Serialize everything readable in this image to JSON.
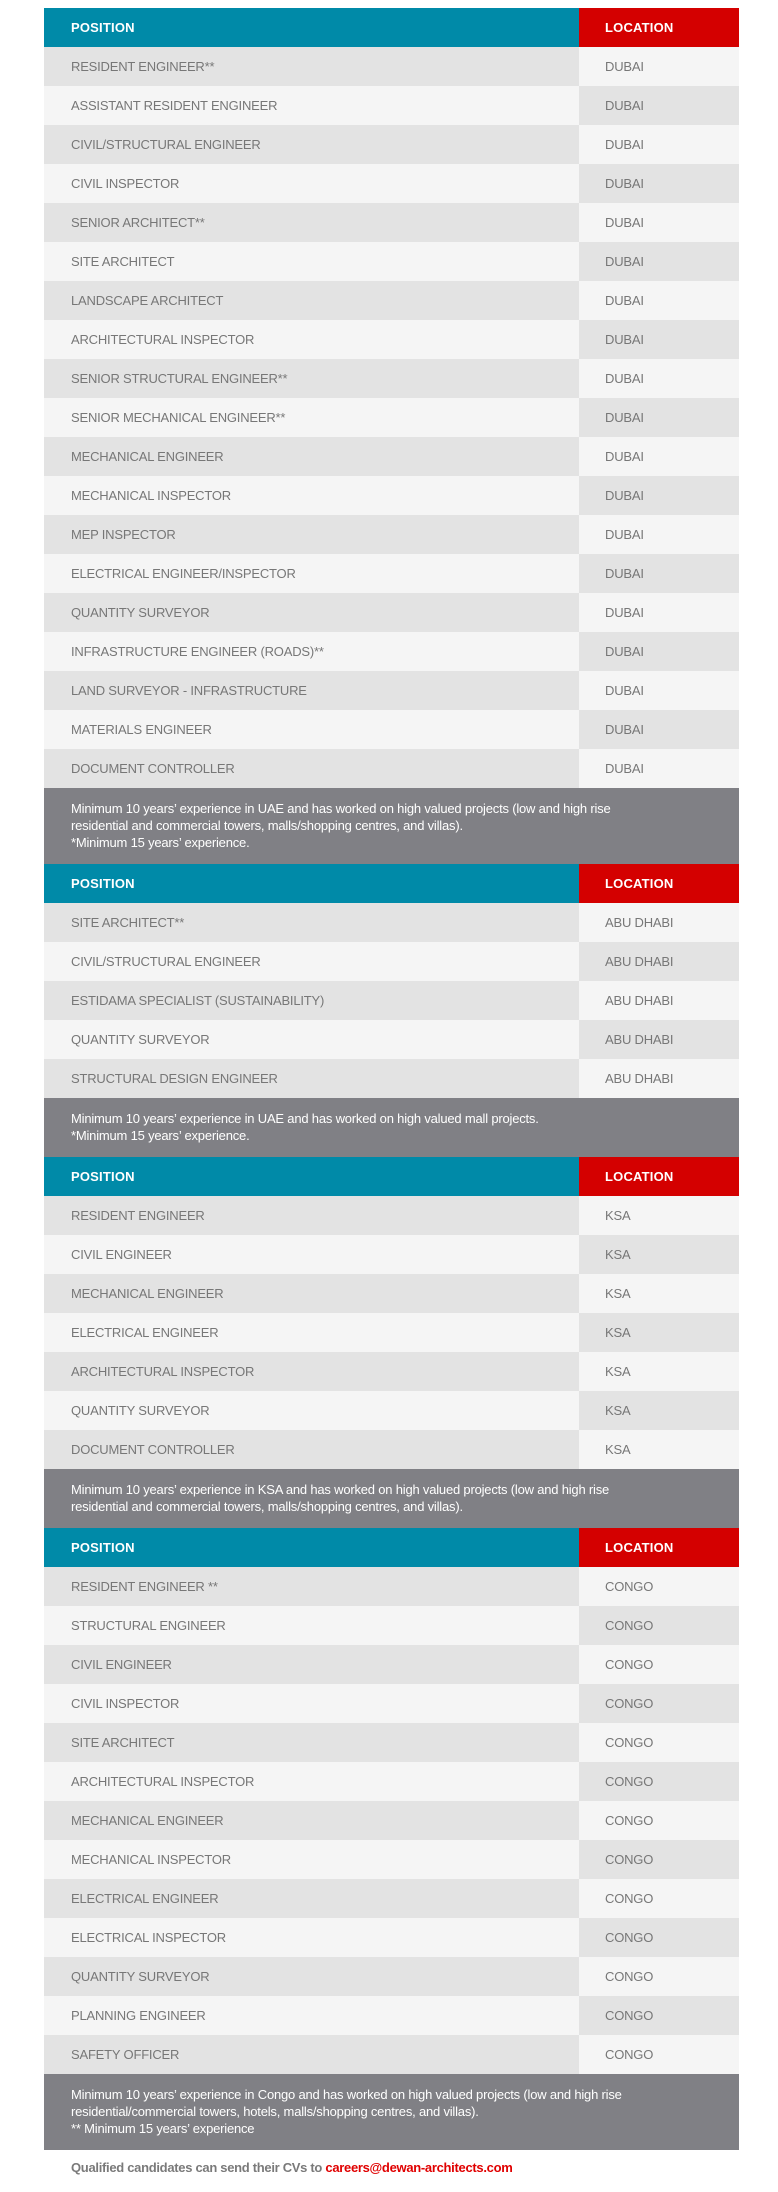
{
  "colors": {
    "header_position": "#008aa8",
    "header_location": "#d40000",
    "note_bg": "#808085",
    "email": "#e00000"
  },
  "headers": {
    "position": "POSITION",
    "location": "LOCATION"
  },
  "sections": [
    {
      "rows": [
        [
          "RESIDENT ENGINEER**",
          "DUBAI"
        ],
        [
          "ASSISTANT RESIDENT ENGINEER",
          "DUBAI"
        ],
        [
          "CIVIL/STRUCTURAL ENGINEER",
          "DUBAI"
        ],
        [
          "CIVIL INSPECTOR",
          "DUBAI"
        ],
        [
          "SENIOR ARCHITECT**",
          "DUBAI"
        ],
        [
          "SITE ARCHITECT",
          "DUBAI"
        ],
        [
          "LANDSCAPE ARCHITECT",
          "DUBAI"
        ],
        [
          "ARCHITECTURAL INSPECTOR",
          "DUBAI"
        ],
        [
          "SENIOR STRUCTURAL ENGINEER**",
          "DUBAI"
        ],
        [
          "SENIOR MECHANICAL ENGINEER**",
          "DUBAI"
        ],
        [
          "MECHANICAL ENGINEER",
          "DUBAI"
        ],
        [
          "MECHANICAL INSPECTOR",
          "DUBAI"
        ],
        [
          "MEP INSPECTOR",
          "DUBAI"
        ],
        [
          "ELECTRICAL ENGINEER/INSPECTOR",
          "DUBAI"
        ],
        [
          "QUANTITY SURVEYOR",
          "DUBAI"
        ],
        [
          "INFRASTRUCTURE ENGINEER (ROADS)**",
          "DUBAI"
        ],
        [
          "LAND SURVEYOR - INFRASTRUCTURE",
          "DUBAI"
        ],
        [
          "MATERIALS ENGINEER",
          "DUBAI"
        ],
        [
          "DOCUMENT CONTROLLER",
          "DUBAI"
        ]
      ],
      "note": "Minimum 10 years’ experience in UAE and has worked on high valued projects (low and high rise\nresidential and commercial towers, malls/shopping centres, and villas).\n*Minimum 15 years’ experience."
    },
    {
      "rows": [
        [
          "SITE ARCHITECT**",
          "ABU DHABI"
        ],
        [
          "CIVIL/STRUCTURAL ENGINEER",
          "ABU DHABI"
        ],
        [
          "ESTIDAMA SPECIALIST (SUSTAINABILITY)",
          "ABU DHABI"
        ],
        [
          "QUANTITY SURVEYOR",
          "ABU DHABI"
        ],
        [
          "STRUCTURAL DESIGN ENGINEER",
          "ABU DHABI"
        ]
      ],
      "note": "Minimum 10 years’ experience in UAE and has worked on high valued mall projects.\n*Minimum 15 years’ experience."
    },
    {
      "rows": [
        [
          "RESIDENT ENGINEER",
          "KSA"
        ],
        [
          "CIVIL ENGINEER",
          "KSA"
        ],
        [
          "MECHANICAL ENGINEER",
          "KSA"
        ],
        [
          "ELECTRICAL ENGINEER",
          "KSA"
        ],
        [
          "ARCHITECTURAL INSPECTOR",
          "KSA"
        ],
        [
          "QUANTITY SURVEYOR",
          "KSA"
        ],
        [
          "DOCUMENT CONTROLLER",
          "KSA"
        ]
      ],
      "note": "Minimum 10 years’ experience in KSA and has worked on high valued projects (low and high rise\nresidential and commercial towers, malls/shopping centres, and villas)."
    },
    {
      "rows": [
        [
          "RESIDENT ENGINEER **",
          "CONGO"
        ],
        [
          "STRUCTURAL ENGINEER",
          "CONGO"
        ],
        [
          "CIVIL ENGINEER",
          "CONGO"
        ],
        [
          "CIVIL INSPECTOR",
          "CONGO"
        ],
        [
          "SITE ARCHITECT",
          "CONGO"
        ],
        [
          "ARCHITECTURAL INSPECTOR",
          "CONGO"
        ],
        [
          "MECHANICAL ENGINEER",
          "CONGO"
        ],
        [
          "MECHANICAL INSPECTOR",
          "CONGO"
        ],
        [
          "ELECTRICAL ENGINEER",
          "CONGO"
        ],
        [
          "ELECTRICAL INSPECTOR",
          "CONGO"
        ],
        [
          "QUANTITY SURVEYOR",
          "CONGO"
        ],
        [
          "PLANNING ENGINEER",
          "CONGO"
        ],
        [
          "SAFETY OFFICER",
          "CONGO"
        ]
      ],
      "note": "Minimum 10 years’ experience in Congo and has worked on high valued projects (low and high rise\nresidential/commercial towers, hotels, malls/shopping centres, and villas).\n** Minimum 15 years’ experience"
    }
  ],
  "footer": {
    "text": "Qualified candidates can send their CVs to ",
    "email": "careers@dewan-architects.com"
  }
}
